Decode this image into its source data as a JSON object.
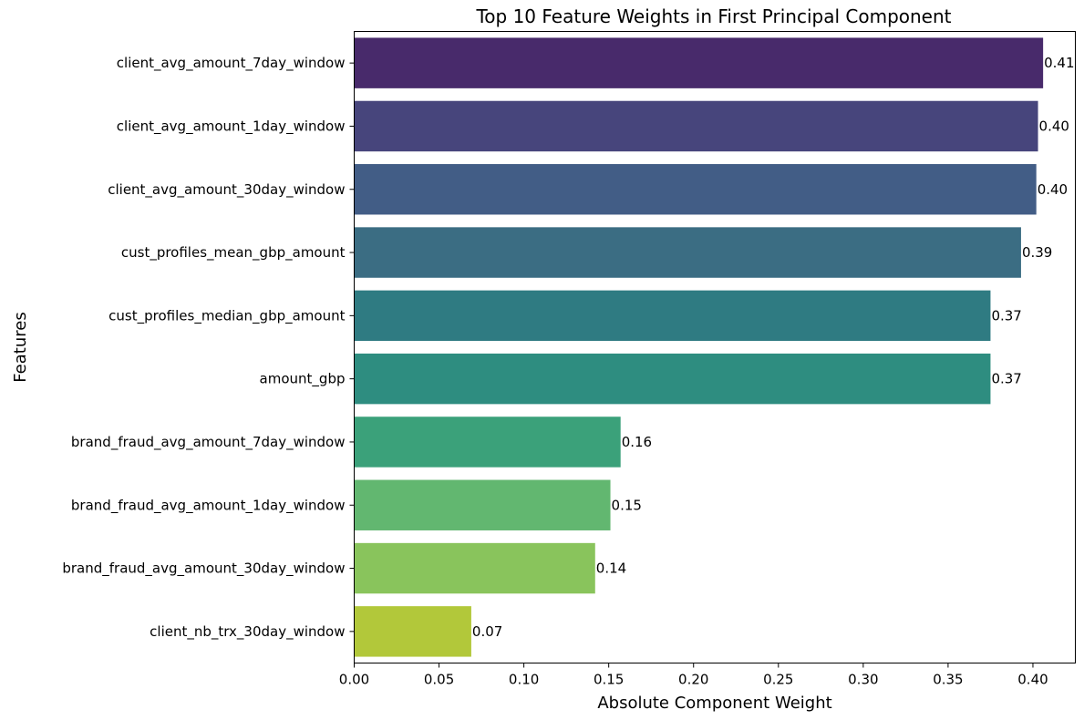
{
  "chart_data": {
    "type": "bar",
    "orientation": "horizontal",
    "title": "Top 10 Feature Weights in First Principal Component",
    "xlabel": "Absolute Component Weight",
    "ylabel": "Features",
    "categories": [
      "client_avg_amount_7day_window",
      "client_avg_amount_1day_window",
      "client_avg_amount_30day_window",
      "cust_profiles_mean_gbp_amount",
      "cust_profiles_median_gbp_amount",
      "amount_gbp",
      "brand_fraud_avg_amount_7day_window",
      "brand_fraud_avg_amount_1day_window",
      "brand_fraud_avg_amount_30day_window",
      "client_nb_trx_30day_window"
    ],
    "values": [
      0.406,
      0.403,
      0.402,
      0.393,
      0.375,
      0.375,
      0.157,
      0.151,
      0.142,
      0.069
    ],
    "data_labels": [
      "0.41",
      "0.40",
      "0.40",
      "0.39",
      "0.37",
      "0.37",
      "0.16",
      "0.15",
      "0.14",
      "0.07"
    ],
    "colors": [
      "#482a6b",
      "#47457c",
      "#425d86",
      "#3b6d83",
      "#2f7b82",
      "#2e8d80",
      "#3ba17a",
      "#62b770",
      "#89c45c",
      "#b2c83a"
    ],
    "xlim": [
      0,
      0.425
    ],
    "xticks": [
      0.0,
      0.05,
      0.1,
      0.15,
      0.2,
      0.25,
      0.3,
      0.35,
      0.4
    ],
    "xtick_labels": [
      "0.00",
      "0.05",
      "0.10",
      "0.15",
      "0.20",
      "0.25",
      "0.30",
      "0.35",
      "0.40"
    ],
    "grid": false,
    "legend": "none"
  }
}
